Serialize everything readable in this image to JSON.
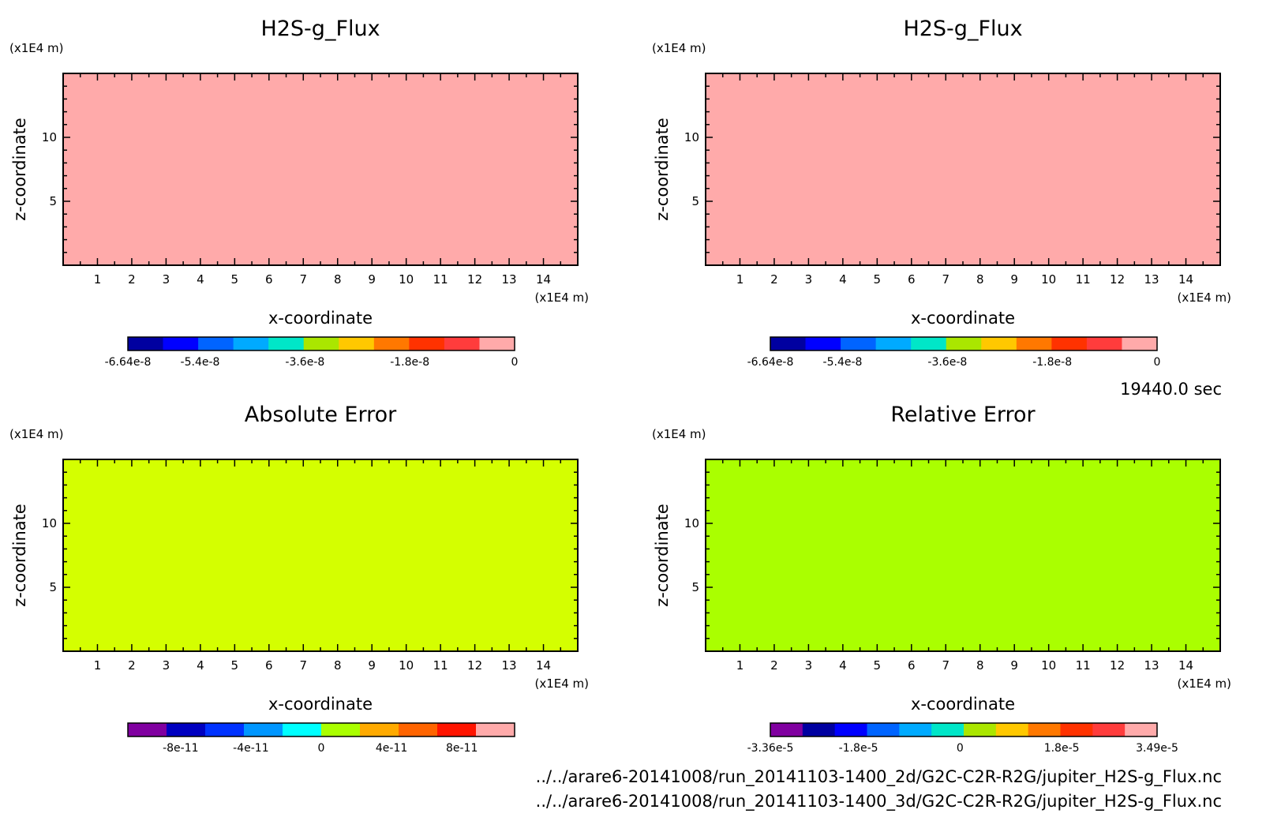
{
  "time_label": "19440.0 sec",
  "files": [
    "../../arare6-20141008/run_20141103-1400_2d/G2C-C2R-R2G/jupiter_H2S-g_Flux.nc",
    "../../arare6-20141008/run_20141103-1400_3d/G2C-C2R-R2G/jupiter_H2S-g_Flux.nc"
  ],
  "chart_data": [
    {
      "type": "heatmap",
      "title": "H2S-g_Flux",
      "xlabel": "x-coordinate",
      "ylabel": "z-coordinate",
      "x_unit": "(x1E4 m)",
      "y_unit": "(x1E4 m)",
      "xlim": [
        0,
        15
      ],
      "ylim": [
        0,
        15
      ],
      "x_ticks": [
        "1",
        "2",
        "3",
        "4",
        "5",
        "6",
        "7",
        "8",
        "9",
        "10",
        "11",
        "12",
        "13",
        "14"
      ],
      "y_ticks": [
        "5",
        "10"
      ],
      "field_value": 0,
      "field_color": "#ffaaaa",
      "colorbar": {
        "min": -6.64e-08,
        "max": 0,
        "colors": [
          "#0000a0",
          "#0000ff",
          "#0064ff",
          "#00aaff",
          "#00e6c8",
          "#aae600",
          "#ffc800",
          "#ff7800",
          "#ff3200",
          "#ff3c3c",
          "#ffaaaa"
        ],
        "tick_labels": [
          "-6.64e-8",
          "-5.4e-8",
          "-3.6e-8",
          "-1.8e-8",
          "0"
        ],
        "tick_values": [
          -6.64e-08,
          -5.4e-08,
          -3.6e-08,
          -1.8e-08,
          0
        ]
      }
    },
    {
      "type": "heatmap",
      "title": "H2S-g_Flux",
      "xlabel": "x-coordinate",
      "ylabel": "z-coordinate",
      "x_unit": "(x1E4 m)",
      "y_unit": "(x1E4 m)",
      "xlim": [
        0,
        15
      ],
      "ylim": [
        0,
        15
      ],
      "x_ticks": [
        "1",
        "2",
        "3",
        "4",
        "5",
        "6",
        "7",
        "8",
        "9",
        "10",
        "11",
        "12",
        "13",
        "14"
      ],
      "y_ticks": [
        "5",
        "10"
      ],
      "field_value": 0,
      "field_color": "#ffaaaa",
      "colorbar": {
        "min": -6.64e-08,
        "max": 0,
        "colors": [
          "#0000a0",
          "#0000ff",
          "#0064ff",
          "#00aaff",
          "#00e6c8",
          "#aae600",
          "#ffc800",
          "#ff7800",
          "#ff3200",
          "#ff3c3c",
          "#ffaaaa"
        ],
        "tick_labels": [
          "-6.64e-8",
          "-5.4e-8",
          "-3.6e-8",
          "-1.8e-8",
          "0"
        ],
        "tick_values": [
          -6.64e-08,
          -5.4e-08,
          -3.6e-08,
          -1.8e-08,
          0
        ]
      }
    },
    {
      "type": "heatmap",
      "title": "Absolute Error",
      "xlabel": "x-coordinate",
      "ylabel": "z-coordinate",
      "x_unit": "(x1E4 m)",
      "y_unit": "(x1E4 m)",
      "xlim": [
        0,
        15
      ],
      "ylim": [
        0,
        15
      ],
      "x_ticks": [
        "1",
        "2",
        "3",
        "4",
        "5",
        "6",
        "7",
        "8",
        "9",
        "10",
        "11",
        "12",
        "13",
        "14"
      ],
      "y_ticks": [
        "5",
        "10"
      ],
      "field_value": 0,
      "field_color": "#d4ff00",
      "colorbar": {
        "min": -1.1e-10,
        "max": 1.1e-10,
        "colors": [
          "#8000a0",
          "#0000c0",
          "#0032ff",
          "#0096ff",
          "#00ffff",
          "#aaff00",
          "#ffaa00",
          "#ff6400",
          "#ff1400",
          "#ffaaaa"
        ],
        "tick_labels": [
          "-8e-11",
          "-4e-11",
          "0",
          "4e-11",
          "8e-11"
        ],
        "tick_values": [
          -8e-11,
          -4e-11,
          0,
          4e-11,
          8e-11
        ]
      }
    },
    {
      "type": "heatmap",
      "title": "Relative Error",
      "xlabel": "x-coordinate",
      "ylabel": "z-coordinate",
      "x_unit": "(x1E4 m)",
      "y_unit": "(x1E4 m)",
      "xlim": [
        0,
        15
      ],
      "ylim": [
        0,
        15
      ],
      "x_ticks": [
        "1",
        "2",
        "3",
        "4",
        "5",
        "6",
        "7",
        "8",
        "9",
        "10",
        "11",
        "12",
        "13",
        "14"
      ],
      "y_ticks": [
        "5",
        "10"
      ],
      "field_value": 0,
      "field_color": "#aaff00",
      "colorbar": {
        "min": -3.36e-05,
        "max": 3.49e-05,
        "colors": [
          "#8000a0",
          "#0000a0",
          "#0000ff",
          "#0064ff",
          "#00aaff",
          "#00e6c8",
          "#aae600",
          "#ffc800",
          "#ff7800",
          "#ff3200",
          "#ff3c3c",
          "#ffaaaa"
        ],
        "tick_labels": [
          "-3.36e-5",
          "-1.8e-5",
          "0",
          "1.8e-5",
          "3.49e-5"
        ],
        "tick_values": [
          -3.36e-05,
          -1.8e-05,
          0,
          1.8e-05,
          3.49e-05
        ]
      }
    }
  ]
}
